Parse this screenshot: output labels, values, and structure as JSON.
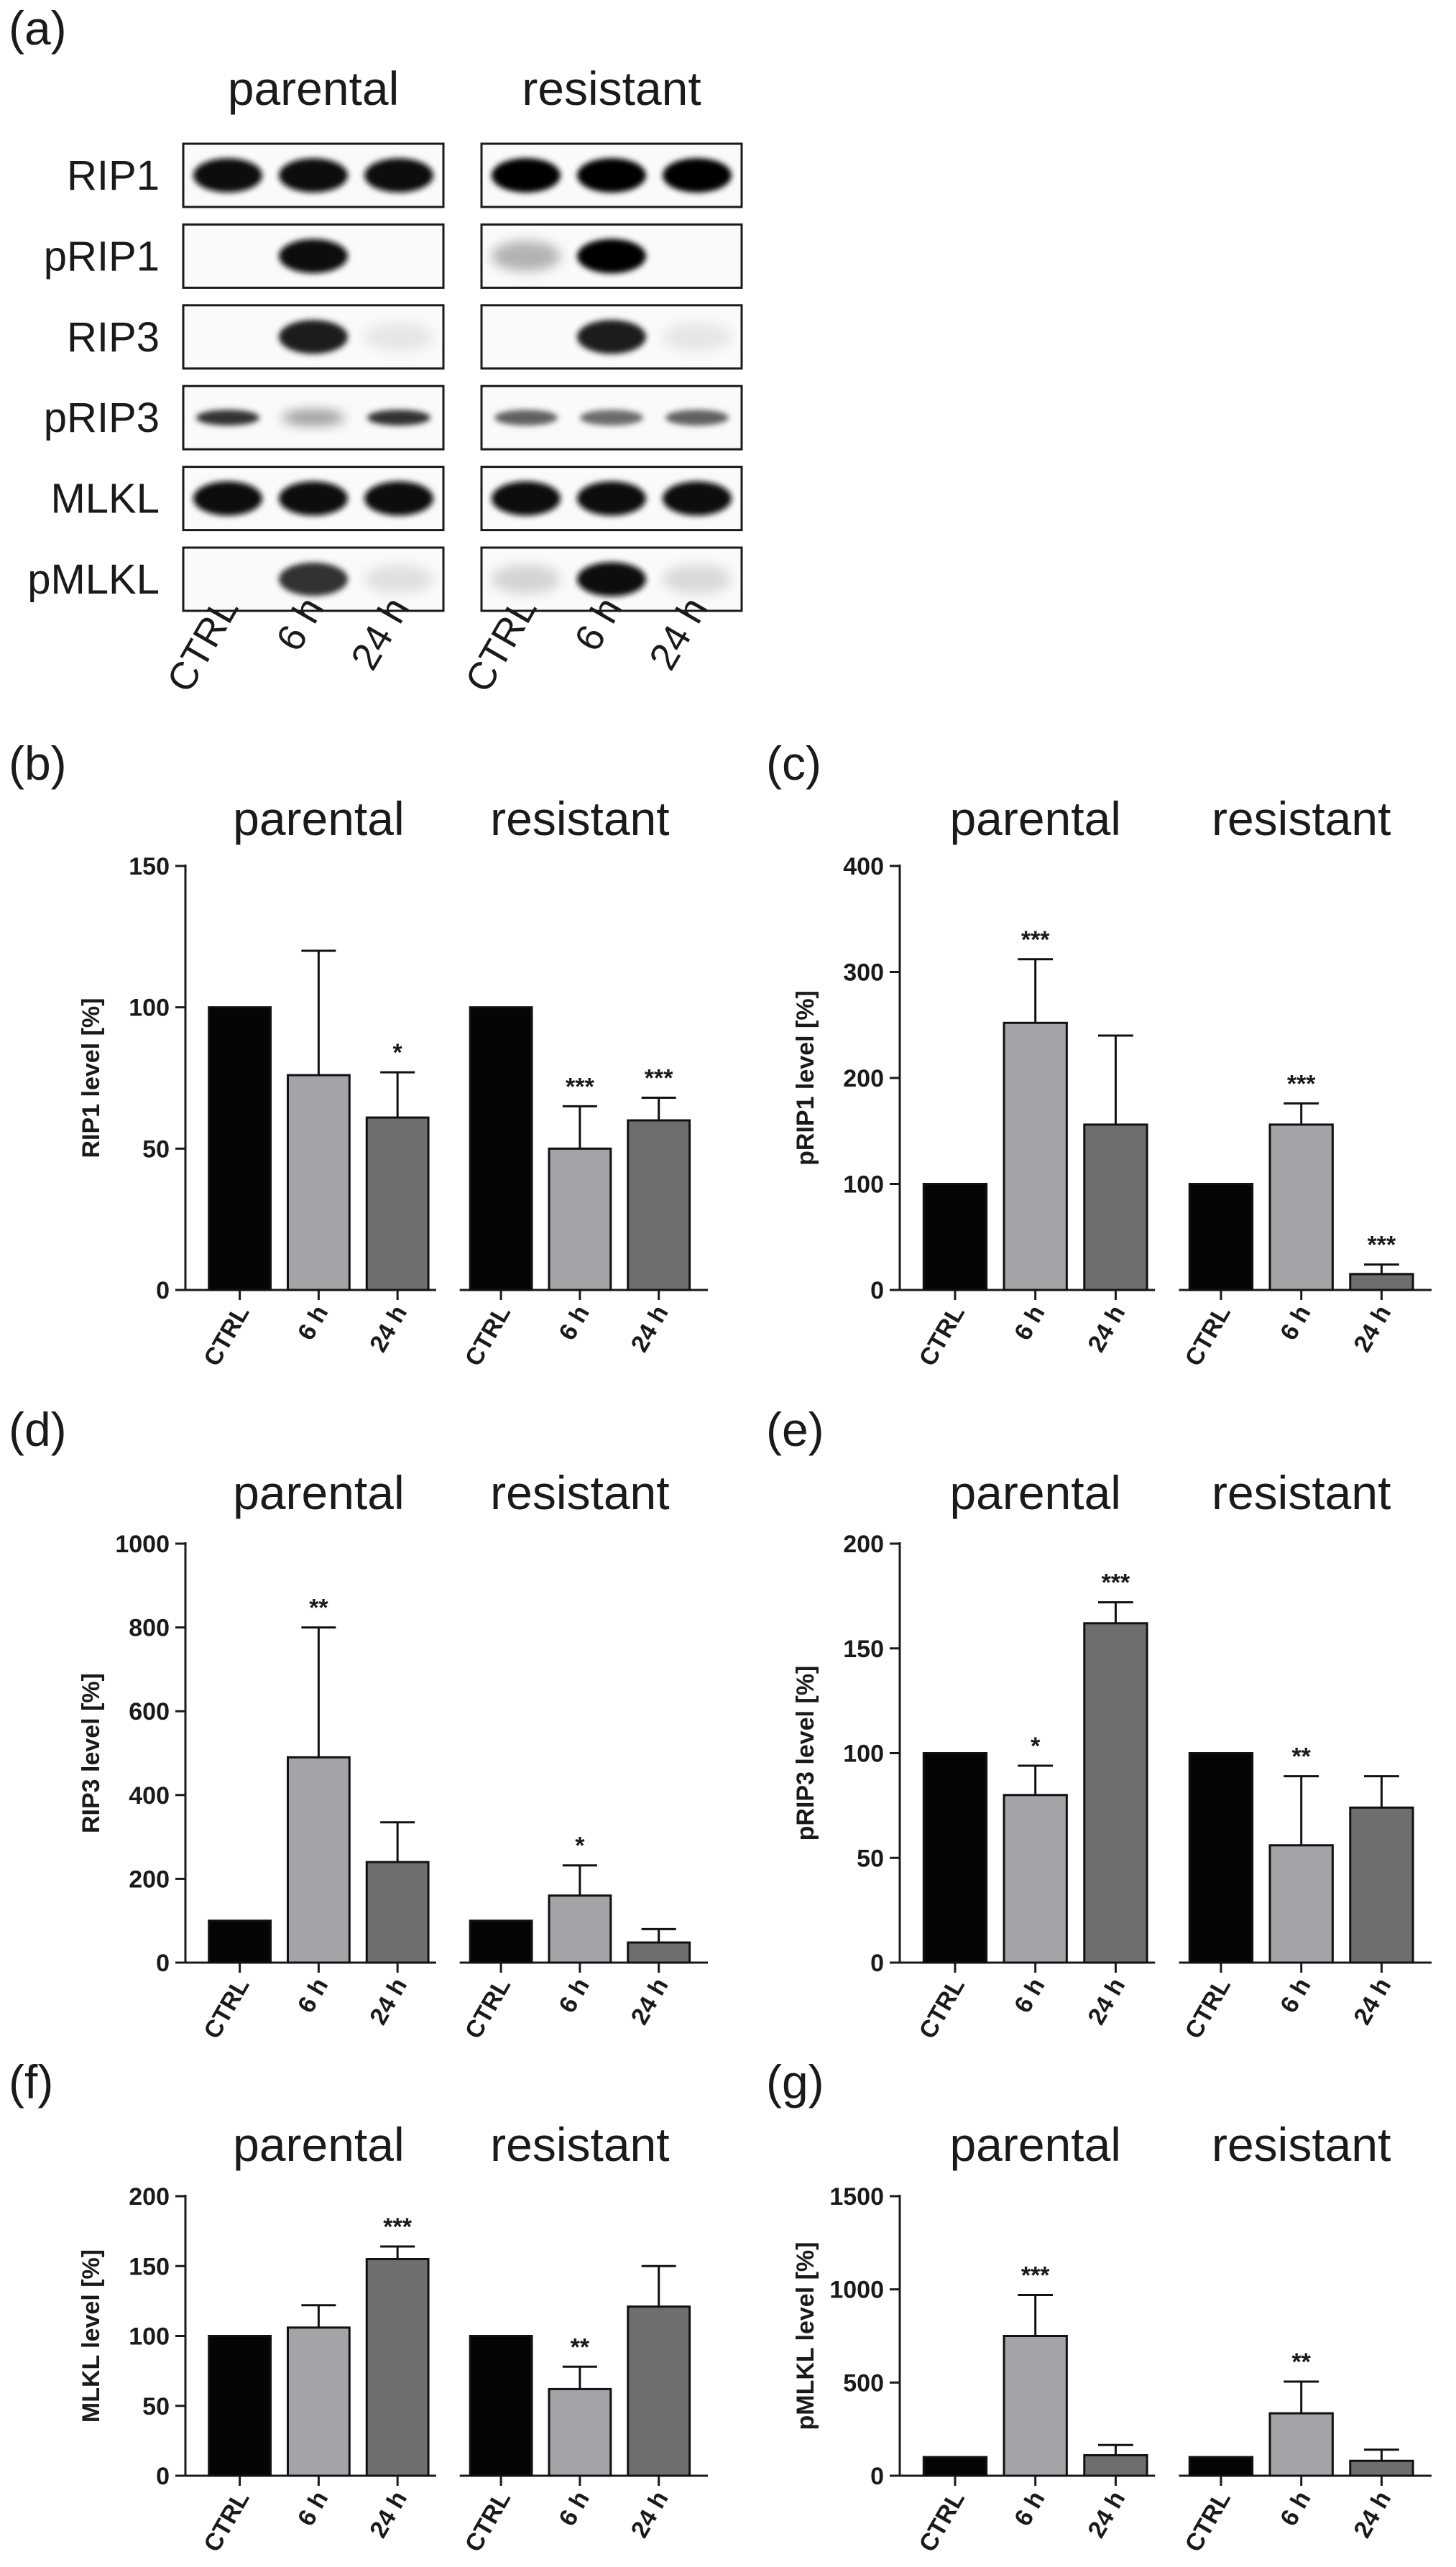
{
  "figure": {
    "panel_a_letter": "(a)",
    "blot_groups": [
      "parental",
      "resistant"
    ],
    "blot_rows": [
      "RIP1",
      "pRIP1",
      "RIP3",
      "pRIP3",
      "MLKL",
      "pMLKL"
    ],
    "lanes": [
      "CTRL",
      "6 h",
      "24 h"
    ],
    "blot_intensity": {
      "parental": [
        [
          0.95,
          0.95,
          0.95
        ],
        [
          0.0,
          0.95,
          0.0
        ],
        [
          0.0,
          0.9,
          0.02
        ],
        [
          0.8,
          0.35,
          0.8
        ],
        [
          0.95,
          0.95,
          0.95
        ],
        [
          0.0,
          0.8,
          0.05
        ]
      ],
      "resistant": [
        [
          1.0,
          1.0,
          1.0
        ],
        [
          0.25,
          1.0,
          0.0
        ],
        [
          0.0,
          0.9,
          0.02
        ],
        [
          0.6,
          0.55,
          0.6
        ],
        [
          0.95,
          0.95,
          0.95
        ],
        [
          0.1,
          0.95,
          0.08
        ]
      ]
    }
  },
  "colors": {
    "ctrl": "#050505",
    "h6": "#a3a3a8",
    "h24": "#6e6e6e",
    "axis": "#1a1a1a"
  },
  "chart_data": [
    {
      "panel": "(b)",
      "type": "bar",
      "ylabel": "RIP1 level [%]",
      "ylim": [
        0,
        150
      ],
      "yticks": [
        0,
        50,
        100,
        150
      ],
      "groups": [
        "parental",
        "resistant"
      ],
      "categories": [
        "CTRL",
        "6 h",
        "24 h"
      ],
      "series": [
        {
          "name": "parental",
          "values": [
            100,
            76,
            61
          ],
          "errors": [
            0,
            44,
            16
          ],
          "stars": [
            "",
            "",
            "*"
          ]
        },
        {
          "name": "resistant",
          "values": [
            100,
            50,
            60
          ],
          "errors": [
            0,
            15,
            8
          ],
          "stars": [
            "",
            "***",
            "***"
          ]
        }
      ]
    },
    {
      "panel": "(c)",
      "type": "bar",
      "ylabel": "pRIP1 level [%]",
      "ylim": [
        0,
        400
      ],
      "yticks": [
        0,
        100,
        200,
        300,
        400
      ],
      "groups": [
        "parental",
        "resistant"
      ],
      "categories": [
        "CTRL",
        "6 h",
        "24 h"
      ],
      "series": [
        {
          "name": "parental",
          "values": [
            100,
            252,
            156
          ],
          "errors": [
            0,
            60,
            84
          ],
          "stars": [
            "",
            "***",
            ""
          ]
        },
        {
          "name": "resistant",
          "values": [
            100,
            156,
            15
          ],
          "errors": [
            0,
            20,
            9
          ],
          "stars": [
            "",
            "***",
            "***"
          ]
        }
      ]
    },
    {
      "panel": "(d)",
      "type": "bar",
      "ylabel": "RIP3 level [%]",
      "ylim": [
        0,
        1000
      ],
      "yticks": [
        0,
        200,
        400,
        600,
        800,
        1000
      ],
      "groups": [
        "parental",
        "resistant"
      ],
      "categories": [
        "CTRL",
        "6 h",
        "24 h"
      ],
      "series": [
        {
          "name": "parental",
          "values": [
            100,
            490,
            240
          ],
          "errors": [
            0,
            310,
            95
          ],
          "stars": [
            "",
            "**",
            ""
          ]
        },
        {
          "name": "resistant",
          "values": [
            100,
            160,
            48
          ],
          "errors": [
            0,
            72,
            32
          ],
          "stars": [
            "",
            "*",
            ""
          ]
        }
      ]
    },
    {
      "panel": "(e)",
      "type": "bar",
      "ylabel": "pRIP3 level [%]",
      "ylim": [
        0,
        200
      ],
      "yticks": [
        0,
        50,
        100,
        150,
        200
      ],
      "groups": [
        "parental",
        "resistant"
      ],
      "categories": [
        "CTRL",
        "6 h",
        "24 h"
      ],
      "series": [
        {
          "name": "parental",
          "values": [
            100,
            80,
            162
          ],
          "errors": [
            0,
            14,
            10
          ],
          "stars": [
            "",
            "*",
            "***"
          ]
        },
        {
          "name": "resistant",
          "values": [
            100,
            56,
            74
          ],
          "errors": [
            0,
            33,
            15
          ],
          "stars": [
            "",
            "**",
            ""
          ]
        }
      ]
    },
    {
      "panel": "(f)",
      "type": "bar",
      "ylabel": "MLKL level [%]",
      "ylim": [
        0,
        200
      ],
      "yticks": [
        0,
        50,
        100,
        150,
        200
      ],
      "groups": [
        "parental",
        "resistant"
      ],
      "categories": [
        "CTRL",
        "6 h",
        "24 h"
      ],
      "series": [
        {
          "name": "parental",
          "values": [
            100,
            106,
            155
          ],
          "errors": [
            0,
            16,
            9
          ],
          "stars": [
            "",
            "",
            "***"
          ]
        },
        {
          "name": "resistant",
          "values": [
            100,
            62,
            121
          ],
          "errors": [
            0,
            16,
            29
          ],
          "stars": [
            "",
            "**",
            ""
          ]
        }
      ]
    },
    {
      "panel": "(g)",
      "type": "bar",
      "ylabel": "pMLKL level [%]",
      "ylim": [
        0,
        1500
      ],
      "yticks": [
        0,
        500,
        1000,
        1500
      ],
      "groups": [
        "parental",
        "resistant"
      ],
      "categories": [
        "CTRL",
        "6 h",
        "24 h"
      ],
      "series": [
        {
          "name": "parental",
          "values": [
            100,
            750,
            110
          ],
          "errors": [
            0,
            220,
            55
          ],
          "stars": [
            "",
            "***",
            ""
          ]
        },
        {
          "name": "resistant",
          "values": [
            100,
            335,
            80
          ],
          "errors": [
            0,
            170,
            60
          ],
          "stars": [
            "",
            "**",
            ""
          ]
        }
      ]
    }
  ]
}
